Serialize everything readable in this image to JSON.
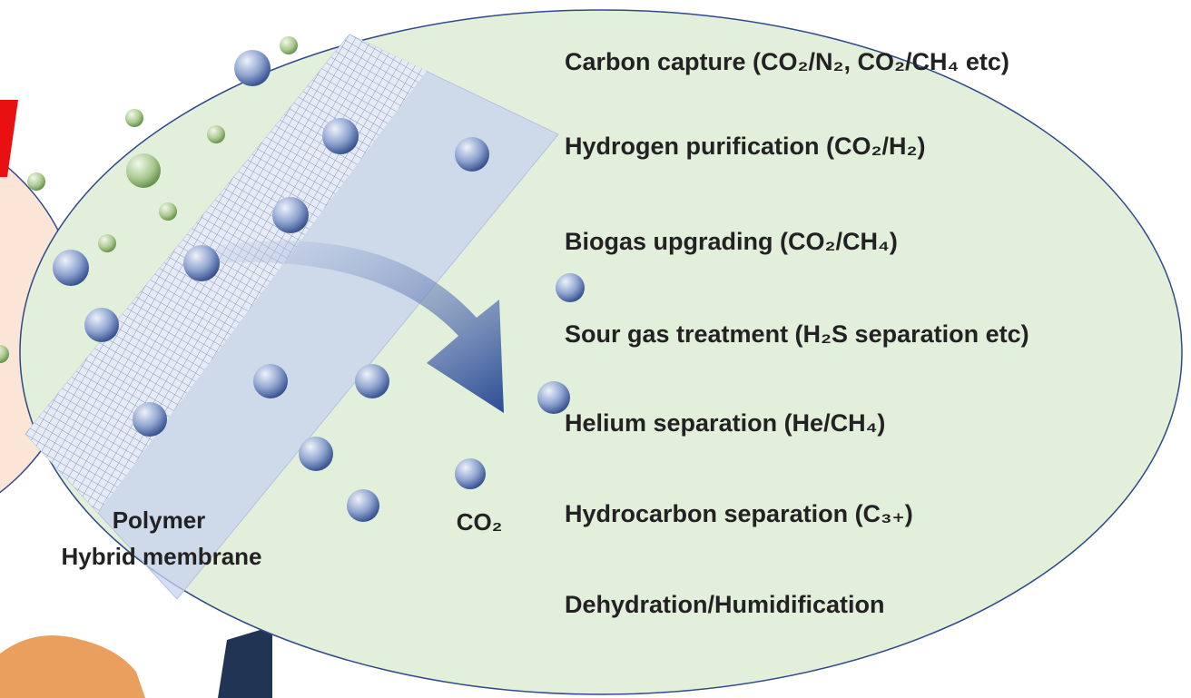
{
  "applications": [
    "Carbon capture (CO₂/N₂, CO₂/CH₄ etc)",
    "Hydrogen purification (CO₂/H₂)",
    "Biogas upgrading (CO₂/CH₄)",
    "Sour gas treatment (H₂S separation etc)",
    "Helium separation (He/CH₄)",
    "Hydrocarbon separation (C₃₊)",
    "Dehydration/Humidification"
  ],
  "labels": {
    "membrane": [
      "Polymer",
      "Hybrid membrane"
    ],
    "gas": "CO₂"
  }
}
